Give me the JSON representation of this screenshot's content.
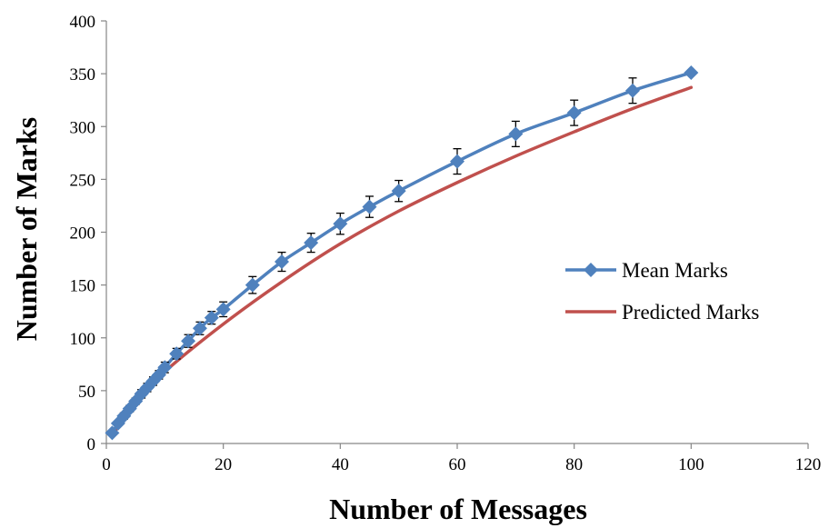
{
  "chart_data": {
    "type": "line",
    "title": "",
    "xlabel": "Number of Messages",
    "ylabel": "Number of  Marks",
    "xlim": [
      0,
      120
    ],
    "ylim": [
      0,
      400
    ],
    "xticks": [
      0,
      20,
      40,
      60,
      80,
      100,
      120
    ],
    "yticks": [
      0,
      50,
      100,
      150,
      200,
      250,
      300,
      350,
      400
    ],
    "grid": false,
    "legend_position": "right",
    "series": [
      {
        "name": "Mean Marks",
        "color": "#4F81BD",
        "marker": "diamond",
        "x": [
          1,
          2,
          3,
          4,
          5,
          6,
          7,
          8,
          9,
          10,
          12,
          14,
          16,
          18,
          20,
          25,
          30,
          35,
          40,
          45,
          50,
          60,
          70,
          80,
          90,
          100
        ],
        "y": [
          10,
          19,
          26,
          33,
          40,
          47,
          53,
          59,
          65,
          72,
          85,
          97,
          109,
          119,
          127,
          150,
          172,
          190,
          208,
          224,
          239,
          267,
          293,
          313,
          334,
          351
        ],
        "error": [
          2,
          2,
          3,
          3,
          3,
          4,
          4,
          4,
          4,
          5,
          5,
          6,
          6,
          6,
          7,
          8,
          9,
          9,
          10,
          10,
          10,
          12,
          12,
          12,
          12,
          0
        ]
      },
      {
        "name": "Predicted Marks",
        "color": "#C0504D",
        "marker": "none",
        "x": [
          1,
          5,
          10,
          20,
          30,
          40,
          50,
          60,
          70,
          80,
          90,
          100
        ],
        "y": [
          8,
          38,
          68,
          113,
          153,
          189,
          220,
          247,
          272,
          295,
          317,
          337
        ]
      }
    ]
  }
}
